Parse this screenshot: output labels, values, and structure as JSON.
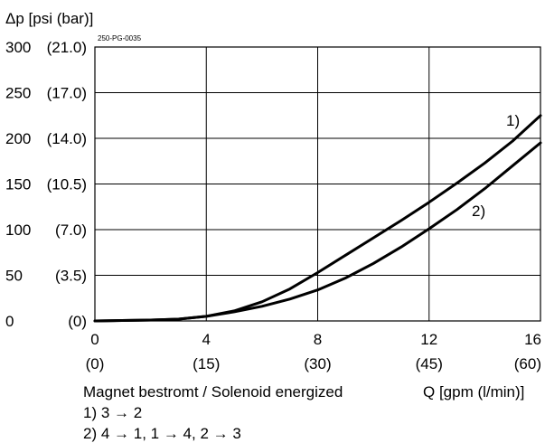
{
  "chart_data": {
    "type": "line",
    "ylabel": "Δp [psi (bar)]",
    "xlabel": "Q [gpm (l/min)]",
    "code": "250-PG-0035",
    "xlim": [
      0,
      16
    ],
    "ylim": [
      0,
      300
    ],
    "x_ticks": [
      {
        "value": 0,
        "label": "0",
        "sublabel": "(0)"
      },
      {
        "value": 4,
        "label": "4",
        "sublabel": "(15)"
      },
      {
        "value": 8,
        "label": "8",
        "sublabel": "(30)"
      },
      {
        "value": 12,
        "label": "12",
        "sublabel": "(45)"
      },
      {
        "value": 16,
        "label": "16",
        "sublabel": "(60)"
      }
    ],
    "y_ticks": [
      {
        "value": 0,
        "label": "0",
        "sublabel": "(0)"
      },
      {
        "value": 50,
        "label": "50",
        "sublabel": "(3.5)"
      },
      {
        "value": 100,
        "label": "100",
        "sublabel": "(7.0)"
      },
      {
        "value": 150,
        "label": "150",
        "sublabel": "(10.5)"
      },
      {
        "value": 200,
        "label": "200",
        "sublabel": "(14.0)"
      },
      {
        "value": 250,
        "label": "250",
        "sublabel": "(17.0)"
      },
      {
        "value": 300,
        "label": "300",
        "sublabel": "(21.0)"
      }
    ],
    "grid": true,
    "series": [
      {
        "name": "1)",
        "points": [
          [
            0,
            0
          ],
          [
            2,
            1
          ],
          [
            3,
            2
          ],
          [
            4,
            5
          ],
          [
            5,
            11
          ],
          [
            6,
            21
          ],
          [
            7,
            35
          ],
          [
            8,
            53
          ],
          [
            9,
            72
          ],
          [
            10,
            91
          ],
          [
            11,
            110
          ],
          [
            12,
            130
          ],
          [
            13,
            151
          ],
          [
            14,
            173
          ],
          [
            15,
            197
          ],
          [
            16,
            225
          ]
        ]
      },
      {
        "name": "2)",
        "points": [
          [
            0,
            0
          ],
          [
            2,
            1
          ],
          [
            3,
            2
          ],
          [
            4,
            5
          ],
          [
            5,
            10
          ],
          [
            6,
            16
          ],
          [
            7,
            24
          ],
          [
            8,
            34
          ],
          [
            9,
            47
          ],
          [
            10,
            63
          ],
          [
            11,
            81
          ],
          [
            12,
            101
          ],
          [
            13,
            122
          ],
          [
            14,
            145
          ],
          [
            15,
            170
          ],
          [
            16,
            195
          ]
        ]
      }
    ],
    "caption": "Magnet bestromt / Solenoid energized",
    "notes": [
      "1)  3 → 2",
      "2)  4 → 1, 1 → 4, 2 → 3"
    ]
  }
}
